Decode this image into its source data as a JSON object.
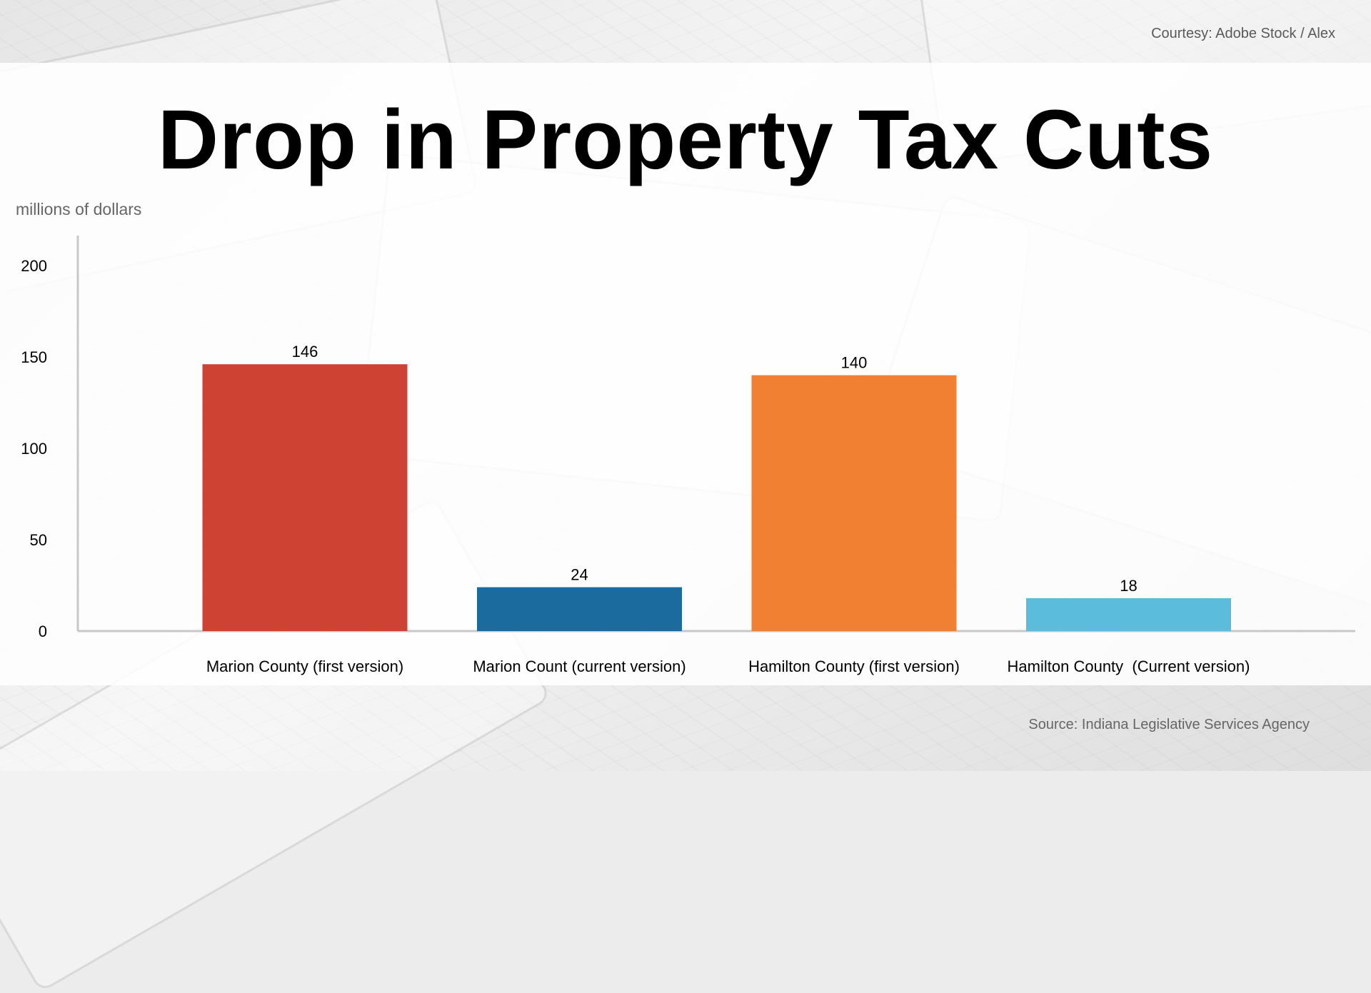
{
  "header": {
    "courtesy": "Courtesy: Adobe Stock / Alex",
    "title": "Drop in Property Tax Cuts"
  },
  "footer": {
    "source": "Source: Indiana Legislative Services Agency"
  },
  "chart_data": {
    "type": "bar",
    "title": "Drop in Property Tax Cuts",
    "ylabel": "millions of dollars",
    "xlabel": "",
    "ylim": [
      0,
      200
    ],
    "yticks": [
      0,
      50,
      100,
      150,
      200
    ],
    "grid": false,
    "legend": "none",
    "categories": [
      "Marion County (first version)",
      "Marion Count (current version)",
      "Hamilton County (first version)",
      "Hamilton County  (Current version)"
    ],
    "values": [
      146,
      24,
      140,
      18
    ],
    "colors": [
      "#cd4232",
      "#1c6b9e",
      "#f28033",
      "#5bbcdb"
    ]
  }
}
